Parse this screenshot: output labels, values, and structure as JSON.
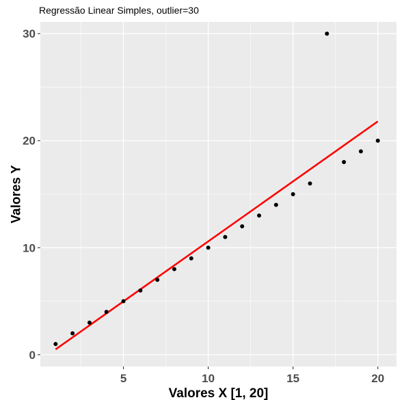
{
  "chart_data": {
    "type": "scatter",
    "title": "",
    "subtitle": "Regressão Linear Simples, outlier=30",
    "xlabel": "Valores X [1, 20]",
    "ylabel": "Valores Y",
    "xlim": [
      0.1,
      21.1
    ],
    "ylim": [
      -1.1,
      31.1
    ],
    "x_ticks": [
      5,
      10,
      15,
      20
    ],
    "y_ticks": [
      0,
      10,
      20,
      30
    ],
    "grid": true,
    "legend": "none",
    "series": [
      {
        "type": "scatter",
        "color": "#000000",
        "points": [
          {
            "x": 1,
            "y": 1
          },
          {
            "x": 2,
            "y": 2
          },
          {
            "x": 3,
            "y": 3
          },
          {
            "x": 4,
            "y": 4
          },
          {
            "x": 5,
            "y": 5
          },
          {
            "x": 6,
            "y": 6
          },
          {
            "x": 7,
            "y": 7
          },
          {
            "x": 8,
            "y": 8
          },
          {
            "x": 9,
            "y": 9
          },
          {
            "x": 10,
            "y": 10
          },
          {
            "x": 11,
            "y": 11
          },
          {
            "x": 12,
            "y": 12
          },
          {
            "x": 13,
            "y": 13
          },
          {
            "x": 14,
            "y": 14
          },
          {
            "x": 15,
            "y": 15
          },
          {
            "x": 16,
            "y": 16
          },
          {
            "x": 17,
            "y": 30
          },
          {
            "x": 18,
            "y": 18
          },
          {
            "x": 19,
            "y": 19
          },
          {
            "x": 20,
            "y": 20
          }
        ]
      },
      {
        "type": "line",
        "color": "#ff0000",
        "points": [
          {
            "x": 1,
            "y": 0.5
          },
          {
            "x": 20,
            "y": 21.8
          }
        ]
      }
    ]
  }
}
